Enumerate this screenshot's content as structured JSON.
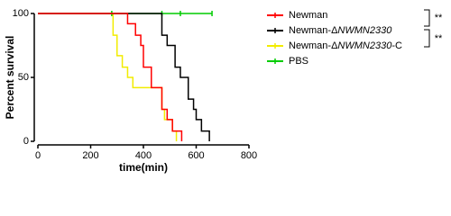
{
  "chart_data": {
    "type": "survival",
    "ylabel": "Percent survival",
    "xlabel": "time(min)",
    "xlim": [
      0,
      800
    ],
    "xticks": [
      0,
      200,
      400,
      600,
      800
    ],
    "ylim": [
      0,
      100
    ],
    "yticks": [
      0,
      50,
      100
    ],
    "series": [
      {
        "name": "Newman",
        "color": "#ff0000",
        "x": [
          0,
          340,
          370,
          390,
          400,
          430,
          470,
          490,
          510,
          530,
          545
        ],
        "values": [
          100,
          92,
          83,
          75,
          58,
          42,
          25,
          17,
          8,
          8,
          0
        ]
      },
      {
        "name": "Newman-ΔNWMN2330",
        "color": "#000000",
        "x": [
          0,
          470,
          490,
          520,
          540,
          570,
          590,
          600,
          620,
          650
        ],
        "values": [
          100,
          83,
          75,
          58,
          50,
          33,
          25,
          17,
          8,
          0
        ]
      },
      {
        "name": "Newman-ΔNWMN2330-C",
        "color": "#f2ec00",
        "x": [
          0,
          285,
          300,
          320,
          340,
          360,
          470,
          480,
          510,
          525
        ],
        "values": [
          100,
          83,
          67,
          58,
          50,
          42,
          25,
          17,
          8,
          0
        ]
      },
      {
        "name": "PBS",
        "color": "#00cc00",
        "x": [
          0,
          660
        ],
        "values": [
          100,
          100
        ],
        "censor_x": [
          280,
          470,
          540,
          660
        ]
      }
    ],
    "annotations": [
      "**",
      "**"
    ]
  }
}
